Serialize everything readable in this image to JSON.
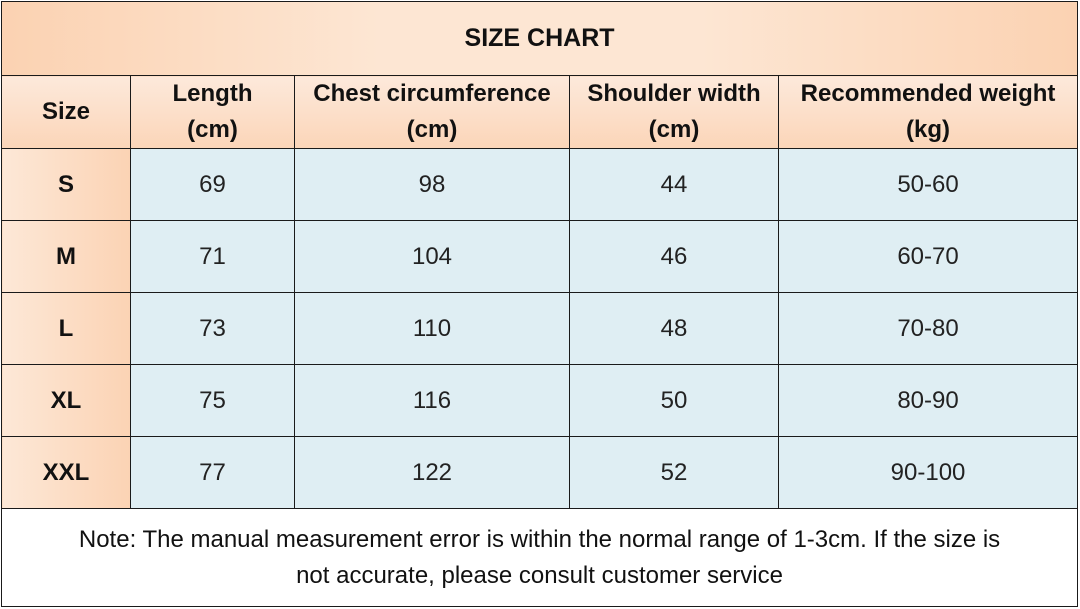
{
  "title": "SIZE CHART",
  "headers": [
    {
      "line1": "Size",
      "line2": ""
    },
    {
      "line1": "Length",
      "line2": "(cm)"
    },
    {
      "line1": "Chest circumference",
      "line2": "(cm)"
    },
    {
      "line1": "Shoulder width",
      "line2": "(cm)"
    },
    {
      "line1": "Recommended weight",
      "line2": "(kg)"
    }
  ],
  "rows": [
    {
      "size": "S",
      "length": "69",
      "chest": "98",
      "shoulder": "44",
      "weight": "50-60"
    },
    {
      "size": "M",
      "length": "71",
      "chest": "104",
      "shoulder": "46",
      "weight": "60-70"
    },
    {
      "size": "L",
      "length": "73",
      "chest": "110",
      "shoulder": "48",
      "weight": "70-80"
    },
    {
      "size": "XL",
      "length": "75",
      "chest": "116",
      "shoulder": "50",
      "weight": "80-90"
    },
    {
      "size": "XXL",
      "length": "77",
      "chest": "122",
      "shoulder": "52",
      "weight": "90-100"
    }
  ],
  "note": {
    "line1": "Note: The manual measurement error is within the normal range of 1-3cm. If the size is",
    "line2": "not accurate, please consult customer service"
  },
  "colors": {
    "header_peach": "#fbd5b8",
    "data_blue": "#dfeef3",
    "border": "#1a1a1a"
  }
}
